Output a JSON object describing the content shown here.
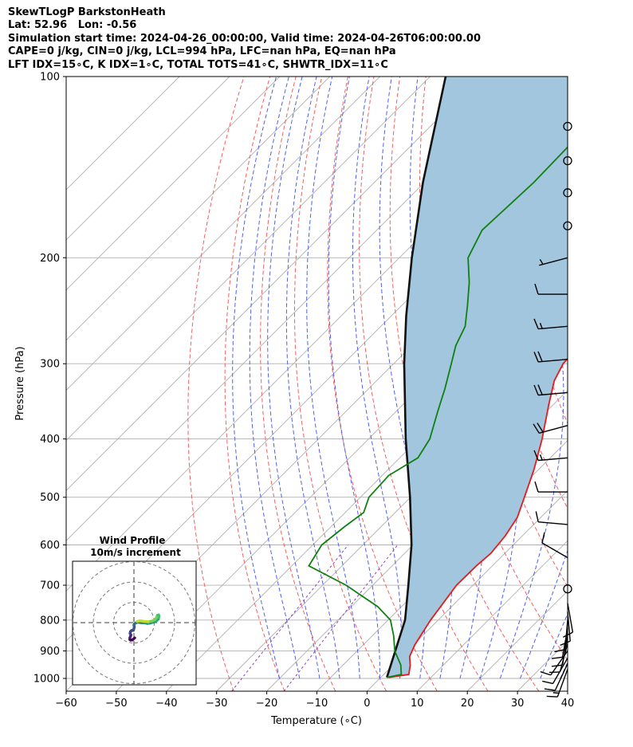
{
  "header": {
    "title": "SkewTLogP BarkstonHeath",
    "location": "Lat: 52.96   Lon: -0.56",
    "times": "Simulation start time: 2024-04-26_00:00:00, Valid time: 2024-04-26T06:00:00.00",
    "indices1": "CAPE=0 j/kg, CIN=0 j/kg, LCL=994 hPa, LFC=nan hPa, EQ=nan hPa",
    "indices2": "LFT IDX=15∘C, K IDX=1∘C, TOTAL TOTS=41∘C, SHWTR_IDX=11∘C"
  },
  "colors": {
    "temperature": "#e8191a",
    "dewpoint": "#108010",
    "parcel": "#111111",
    "cape_fill": "#a3c6df",
    "dry_adiabat": "#f06060",
    "moist_adiabat": "#5060ee",
    "mixing_ratio": "#8c3cc8",
    "isotherm": "#b0b0b0",
    "grid": "#b0b0b0"
  },
  "chart_data": {
    "type": "skewt",
    "title": "SkewTLogP BarkstonHeath",
    "xlabel": "Temperature (∘C)",
    "ylabel": "Pressure (hPa)",
    "xlim": [
      -60,
      40
    ],
    "ylim": [
      1050,
      100
    ],
    "y_scale": "log",
    "grid": true,
    "x_ticks": [
      "−60",
      "−50",
      "−40",
      "−30",
      "−20",
      "−10",
      "0",
      "10",
      "20",
      "30",
      "40"
    ],
    "x_tick_values": [
      -60,
      -50,
      -40,
      -30,
      -20,
      -10,
      0,
      10,
      20,
      30,
      40
    ],
    "y_ticks": [
      "100",
      "200",
      "300",
      "400",
      "500",
      "600",
      "700",
      "800",
      "900",
      "1000"
    ],
    "y_tick_values": [
      100,
      200,
      300,
      400,
      500,
      600,
      700,
      800,
      900,
      1000
    ],
    "temperature_profile": [
      [
        996,
        1.6
      ],
      [
        985,
        5.0
      ],
      [
        950,
        3.4
      ],
      [
        920,
        1.6
      ],
      [
        880,
        0.3
      ],
      [
        800,
        -1.5
      ],
      [
        700,
        -3.3
      ],
      [
        650,
        -3.2
      ],
      [
        620,
        -2.8
      ],
      [
        580,
        -3.4
      ],
      [
        540,
        -4.7
      ],
      [
        500,
        -7.3
      ],
      [
        450,
        -10.9
      ],
      [
        400,
        -15.4
      ],
      [
        350,
        -21.0
      ],
      [
        320,
        -24.6
      ],
      [
        300,
        -26.2
      ],
      [
        280,
        -26.6
      ],
      [
        250,
        -26.0
      ],
      [
        230,
        -25.2
      ],
      [
        210,
        -25.7
      ],
      [
        190,
        -26.9
      ],
      [
        170,
        -28.6
      ],
      [
        150,
        -31.2
      ],
      [
        130,
        -34.2
      ],
      [
        110,
        -37.9
      ],
      [
        100,
        -40.3
      ]
    ],
    "dewpoint_profile": [
      [
        996,
        1.2
      ],
      [
        985,
        3.5
      ],
      [
        950,
        1.5
      ],
      [
        900,
        -2.5
      ],
      [
        850,
        -5.7
      ],
      [
        800,
        -9.5
      ],
      [
        760,
        -14.7
      ],
      [
        700,
        -25.3
      ],
      [
        650,
        -36.6
      ],
      [
        600,
        -38.2
      ],
      [
        560,
        -37.3
      ],
      [
        530,
        -36.3
      ],
      [
        500,
        -38.3
      ],
      [
        460,
        -38.7
      ],
      [
        430,
        -36.4
      ],
      [
        400,
        -37.8
      ],
      [
        360,
        -41.7
      ],
      [
        330,
        -44.8
      ],
      [
        300,
        -48.5
      ],
      [
        280,
        -51.2
      ],
      [
        260,
        -53.2
      ],
      [
        240,
        -56.9
      ],
      [
        220,
        -61.1
      ],
      [
        200,
        -66.3
      ],
      [
        180,
        -69.0
      ],
      [
        150,
        -68.2
      ],
      [
        120,
        -68.7
      ],
      [
        100,
        -69.8
      ]
    ],
    "parcel_profile": [
      [
        996,
        1.2
      ],
      [
        900,
        -2.4
      ],
      [
        800,
        -6.6
      ],
      [
        700,
        -12.9
      ],
      [
        600,
        -20.3
      ],
      [
        500,
        -30.1
      ],
      [
        400,
        -42.6
      ],
      [
        300,
        -57.9
      ],
      [
        250,
        -67.0
      ],
      [
        200,
        -77.5
      ],
      [
        150,
        -90.3
      ],
      [
        100,
        -106.9
      ]
    ],
    "wind_barbs": [
      {
        "p": 965,
        "speed_kt": 15,
        "dir": 200
      },
      {
        "p": 945,
        "speed_kt": 10,
        "dir": 205
      },
      {
        "p": 925,
        "speed_kt": 10,
        "dir": 210
      },
      {
        "p": 900,
        "speed_kt": 10,
        "dir": 215
      },
      {
        "p": 875,
        "speed_kt": 10,
        "dir": 195
      },
      {
        "p": 850,
        "speed_kt": 10,
        "dir": 190
      },
      {
        "p": 825,
        "speed_kt": 10,
        "dir": 190
      },
      {
        "p": 800,
        "speed_kt": 10,
        "dir": 185
      },
      {
        "p": 775,
        "speed_kt": 10,
        "dir": 175
      },
      {
        "p": 750,
        "speed_kt": 10,
        "dir": 170
      },
      {
        "p": 710,
        "speed_kt": 0,
        "dir": 0
      },
      {
        "p": 630,
        "speed_kt": 10,
        "dir": 300
      },
      {
        "p": 555,
        "speed_kt": 10,
        "dir": 275
      },
      {
        "p": 490,
        "speed_kt": 10,
        "dir": 270
      },
      {
        "p": 430,
        "speed_kt": 15,
        "dir": 265
      },
      {
        "p": 380,
        "speed_kt": 20,
        "dir": 255
      },
      {
        "p": 335,
        "speed_kt": 20,
        "dir": 265
      },
      {
        "p": 295,
        "speed_kt": 20,
        "dir": 265
      },
      {
        "p": 260,
        "speed_kt": 15,
        "dir": 265
      },
      {
        "p": 230,
        "speed_kt": 10,
        "dir": 270
      },
      {
        "p": 200,
        "speed_kt": 5,
        "dir": 255
      },
      {
        "p": 177,
        "speed_kt": 0,
        "dir": 0
      },
      {
        "p": 156,
        "speed_kt": 0,
        "dir": 0
      },
      {
        "p": 138,
        "speed_kt": 0,
        "dir": 0
      },
      {
        "p": 121,
        "speed_kt": 0,
        "dir": 0
      }
    ],
    "hodograph": {
      "title": "Wind Profile",
      "subtitle": "10m/s increment",
      "ring_step_ms": 10,
      "ring_count": 3,
      "points_ms": [
        [
          0.4,
          -7.5
        ],
        [
          -0.8,
          -8.5
        ],
        [
          -1.6,
          -8.6
        ],
        [
          -2.0,
          -8.3
        ],
        [
          -2.0,
          -7.5
        ],
        [
          -1.7,
          -6.8
        ],
        [
          -1.5,
          -6.0
        ],
        [
          -1.9,
          -5.3
        ],
        [
          -1.7,
          -4.4
        ],
        [
          -1.2,
          -3.9
        ],
        [
          -0.3,
          -3.8
        ],
        [
          0.0,
          -3.0
        ],
        [
          0.2,
          -2.1
        ],
        [
          0.0,
          -1.2
        ],
        [
          0.4,
          -0.4
        ],
        [
          1.8,
          0.2
        ],
        [
          3.5,
          0.0
        ],
        [
          5.0,
          -0.1
        ],
        [
          6.5,
          -0.4
        ],
        [
          8.0,
          -0.2
        ],
        [
          9.5,
          0.2
        ],
        [
          10.6,
          0.6
        ],
        [
          11.4,
          1.2
        ],
        [
          12.0,
          1.8
        ],
        [
          12.2,
          2.6
        ],
        [
          12.3,
          3.3
        ],
        [
          12.1,
          3.8
        ],
        [
          11.6,
          3.6
        ],
        [
          11.2,
          2.7
        ],
        [
          10.5,
          1.6
        ],
        [
          9.0,
          0.8
        ],
        [
          7.0,
          0.4
        ],
        [
          5.0,
          0.6
        ],
        [
          3.0,
          0.9
        ],
        [
          1.6,
          0.6
        ]
      ]
    }
  }
}
